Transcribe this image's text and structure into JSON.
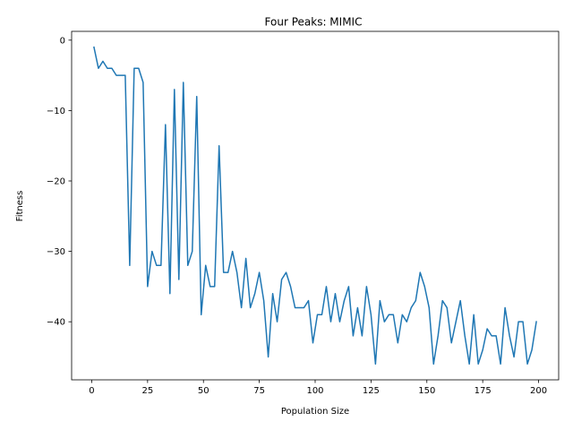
{
  "chart_data": {
    "type": "line",
    "title": "Four Peaks: MIMIC",
    "xlabel": "Population Size",
    "ylabel": "Fitness",
    "xlim": [
      -9,
      209
    ],
    "ylim": [
      -48.25,
      1.25
    ],
    "xticks": [
      0,
      25,
      50,
      75,
      100,
      125,
      150,
      175,
      200
    ],
    "yticks": [
      0,
      -10,
      -20,
      -30,
      -40
    ],
    "xtick_labels": [
      "0",
      "25",
      "50",
      "75",
      "100",
      "125",
      "150",
      "175",
      "200"
    ],
    "ytick_labels": [
      "0",
      "−10",
      "−20",
      "−30",
      "−40"
    ],
    "grid": false,
    "series": [
      {
        "name": "MIMIC",
        "color": "#1f77b4",
        "x": [
          1,
          3,
          5,
          7,
          9,
          11,
          13,
          15,
          17,
          19,
          21,
          23,
          25,
          27,
          29,
          31,
          33,
          35,
          37,
          39,
          41,
          43,
          45,
          47,
          49,
          51,
          53,
          55,
          57,
          59,
          61,
          63,
          65,
          67,
          69,
          71,
          73,
          75,
          77,
          79,
          81,
          83,
          85,
          87,
          89,
          91,
          93,
          95,
          97,
          99,
          101,
          103,
          105,
          107,
          109,
          111,
          113,
          115,
          117,
          119,
          121,
          123,
          125,
          127,
          129,
          131,
          133,
          135,
          137,
          139,
          141,
          143,
          145,
          147,
          149,
          151,
          153,
          155,
          157,
          159,
          161,
          163,
          165,
          167,
          169,
          171,
          173,
          175,
          177,
          179,
          181,
          183,
          185,
          187,
          189,
          191,
          193,
          195,
          197,
          199
        ],
        "y": [
          -1,
          -4,
          -3,
          -4,
          -4,
          -5,
          -5,
          -5,
          -32,
          -4,
          -4,
          -6,
          -35,
          -30,
          -32,
          -32,
          -12,
          -36,
          -7,
          -34,
          -6,
          -32,
          -30,
          -8,
          -39,
          -32,
          -35,
          -35,
          -15,
          -33,
          -33,
          -30,
          -33,
          -38,
          -31,
          -38,
          -36,
          -33,
          -37,
          -45,
          -36,
          -40,
          -34,
          -33,
          -35,
          -38,
          -38,
          -38,
          -37,
          -43,
          -39,
          -39,
          -35,
          -40,
          -36,
          -40,
          -37,
          -35,
          -42,
          -38,
          -42,
          -35,
          -39,
          -46,
          -37,
          -40,
          -39,
          -39,
          -43,
          -39,
          -40,
          -38,
          -37,
          -33,
          -35,
          -38,
          -46,
          -42,
          -37,
          -38,
          -43,
          -40,
          -37,
          -42,
          -46,
          -39,
          -46,
          -44,
          -41,
          -42,
          -42,
          -46,
          -38,
          -42,
          -45,
          -40,
          -40,
          -46,
          -44,
          -40
        ]
      }
    ]
  }
}
